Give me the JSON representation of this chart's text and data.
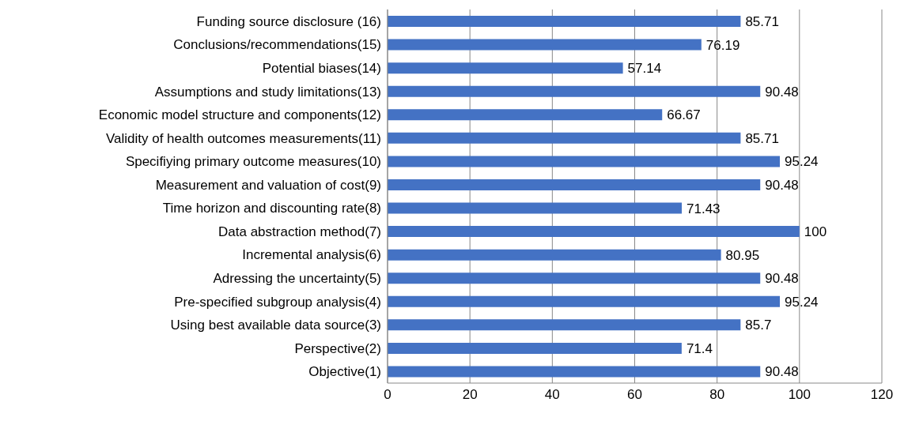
{
  "chart_data": {
    "type": "bar",
    "orientation": "horizontal",
    "categories": [
      "Funding source disclosure (16)",
      "Conclusions/recommendations(15)",
      "Potential biases(14)",
      "Assumptions and study limitations(13)",
      "Economic model structure and components(12)",
      "Validity of health outcomes measurements(11)",
      "Specifiying primary outcome measures(10)",
      "Measurement and valuation of cost(9)",
      "Time horizon and discounting rate(8)",
      "Data abstraction method(7)",
      "Incremental analysis(6)",
      "Adressing the uncertainty(5)",
      "Pre-specified subgroup analysis(4)",
      "Using best available data source(3)",
      "Perspective(2)",
      "Objective(1)"
    ],
    "values": [
      85.71,
      76.19,
      57.14,
      90.48,
      66.67,
      85.71,
      95.24,
      90.48,
      71.43,
      100,
      80.95,
      90.48,
      95.24,
      85.7,
      71.4,
      90.48
    ],
    "color": "#4472c4",
    "xlim": [
      0,
      120
    ],
    "xticks": [
      0,
      20,
      40,
      60,
      80,
      100,
      120
    ],
    "grid": "x",
    "data_labels": true
  }
}
